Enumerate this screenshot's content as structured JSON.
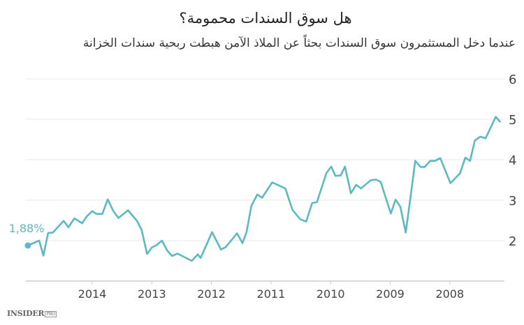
{
  "chart_data": {
    "type": "line",
    "title": "هل سوق السندات محمومة؟",
    "subtitle": "عندما دخل المستثمرون سوق السندات بحثاً عن الملاذ الآمن هبطت ربحية سندات الخزانة",
    "xlabel": "",
    "ylabel": "",
    "x_reversed": true,
    "xlim": [
      2007.1,
      2015.1
    ],
    "ylim": [
      1,
      6
    ],
    "yticks": [
      "2",
      "3",
      "4",
      "5",
      "6"
    ],
    "xticks": [
      "2014",
      "2013",
      "2012",
      "2011",
      "2010",
      "2009",
      "2008"
    ],
    "grid": true,
    "color": "#5cb9c1",
    "annotation": "1,88%",
    "x": [
      2015.08,
      2014.89,
      2014.82,
      2014.74,
      2014.66,
      2014.48,
      2014.4,
      2014.3,
      2014.17,
      2014.09,
      2014.0,
      2013.93,
      2013.83,
      2013.74,
      2013.65,
      2013.56,
      2013.4,
      2013.25,
      2013.17,
      2013.08,
      2013.0,
      2012.91,
      2012.83,
      2012.74,
      2012.66,
      2012.57,
      2012.33,
      2012.23,
      2012.18,
      2011.99,
      2011.84,
      2011.76,
      2011.57,
      2011.48,
      2011.41,
      2011.33,
      2011.23,
      2011.15,
      2010.98,
      2010.76,
      2010.64,
      2010.51,
      2010.41,
      2010.31,
      2010.23,
      2010.07,
      2009.99,
      2009.92,
      2009.83,
      2009.76,
      2009.66,
      2009.57,
      2009.49,
      2009.33,
      2009.24,
      2009.16,
      2008.99,
      2008.91,
      2008.83,
      2008.74,
      2008.67,
      2008.58,
      2008.49,
      2008.42,
      2008.33,
      2008.25,
      2008.16,
      2007.99,
      2007.83,
      2007.74,
      2007.66,
      2007.58,
      2007.49,
      2007.4,
      2007.23,
      2007.15
    ],
    "y": [
      1.88,
      2.0,
      1.63,
      2.19,
      2.2,
      2.49,
      2.33,
      2.55,
      2.43,
      2.6,
      2.73,
      2.66,
      2.66,
      3.02,
      2.74,
      2.56,
      2.75,
      2.49,
      2.26,
      1.67,
      1.83,
      1.9,
      2.0,
      1.75,
      1.62,
      1.68,
      1.5,
      1.66,
      1.57,
      2.21,
      1.78,
      1.84,
      2.18,
      1.94,
      2.21,
      2.86,
      3.14,
      3.06,
      3.44,
      3.29,
      2.76,
      2.53,
      2.47,
      2.93,
      2.95,
      3.67,
      3.83,
      3.6,
      3.61,
      3.83,
      3.17,
      3.38,
      3.29,
      3.49,
      3.51,
      3.45,
      2.67,
      3.01,
      2.84,
      2.2,
      2.95,
      3.97,
      3.82,
      3.82,
      3.97,
      3.97,
      4.04,
      3.42,
      3.66,
      4.05,
      3.97,
      4.47,
      4.57,
      4.53,
      5.06,
      4.93
    ]
  },
  "logo": {
    "main": "INSIDER",
    "sub": "PRO"
  }
}
